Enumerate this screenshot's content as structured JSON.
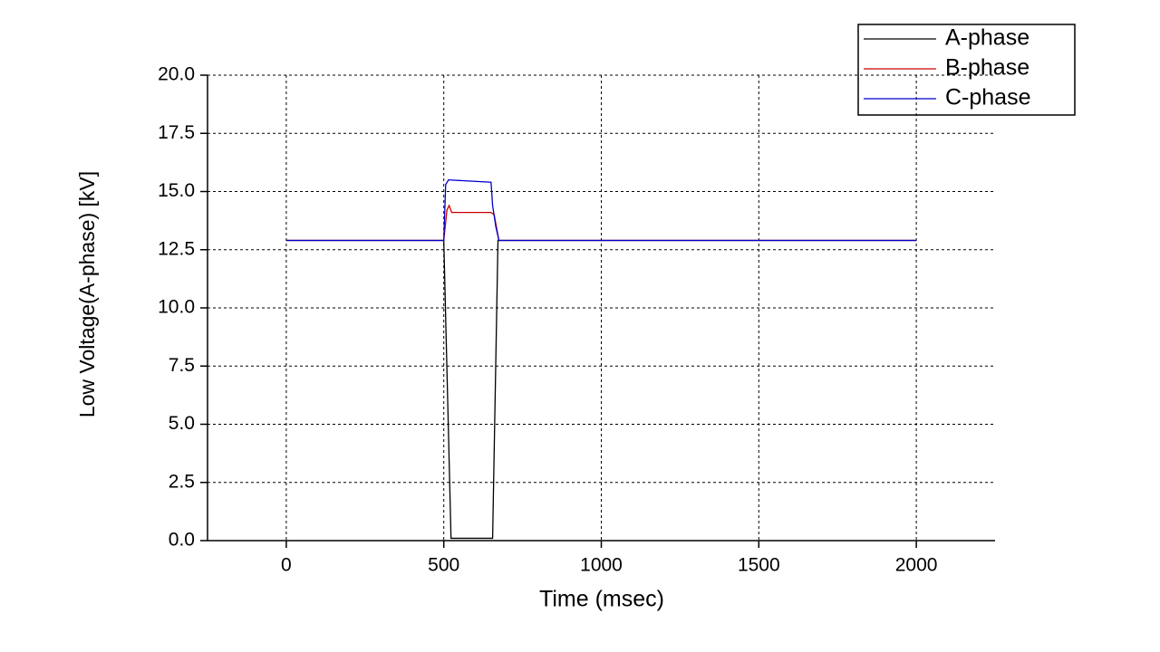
{
  "chart_data": {
    "type": "line",
    "xlabel": "Time (msec)",
    "ylabel": "Low Voltage(A-phase) [kV]",
    "xlim": [
      -250,
      2250
    ],
    "xticks": [
      0,
      500,
      1000,
      1500,
      2000
    ],
    "ylim": [
      0,
      20
    ],
    "yticks": [
      {
        "value": 0,
        "label": "0.0"
      },
      {
        "value": 2.5,
        "label": "2.5"
      },
      {
        "value": 5,
        "label": "5.0"
      },
      {
        "value": 7.5,
        "label": "7.5"
      },
      {
        "value": 10,
        "label": "10.0"
      },
      {
        "value": 12.5,
        "label": "12.5"
      },
      {
        "value": 15,
        "label": "15.0"
      },
      {
        "value": 17.5,
        "label": "17.5"
      },
      {
        "value": 20,
        "label": "20.0"
      }
    ],
    "grid": true,
    "legend": "top-right",
    "series": [
      {
        "name": "A-phase",
        "color": "#000000",
        "x": [
          0,
          500,
          523,
          655,
          672,
          2000
        ],
        "values": [
          12.9,
          12.9,
          0.1,
          0.1,
          12.9,
          12.9
        ]
      },
      {
        "name": "B-phase",
        "color": "#cc0000",
        "x": [
          0,
          500,
          510,
          517,
          525,
          650,
          660,
          675,
          2000
        ],
        "values": [
          12.9,
          12.9,
          14.2,
          14.4,
          14.1,
          14.1,
          14.0,
          12.9,
          12.9
        ]
      },
      {
        "name": "C-phase",
        "color": "#0000cc",
        "x": [
          0,
          500,
          506,
          515,
          650,
          655,
          665,
          675,
          2000
        ],
        "values": [
          12.9,
          12.9,
          15.3,
          15.5,
          15.4,
          14.4,
          13.5,
          12.9,
          12.9
        ]
      }
    ]
  }
}
